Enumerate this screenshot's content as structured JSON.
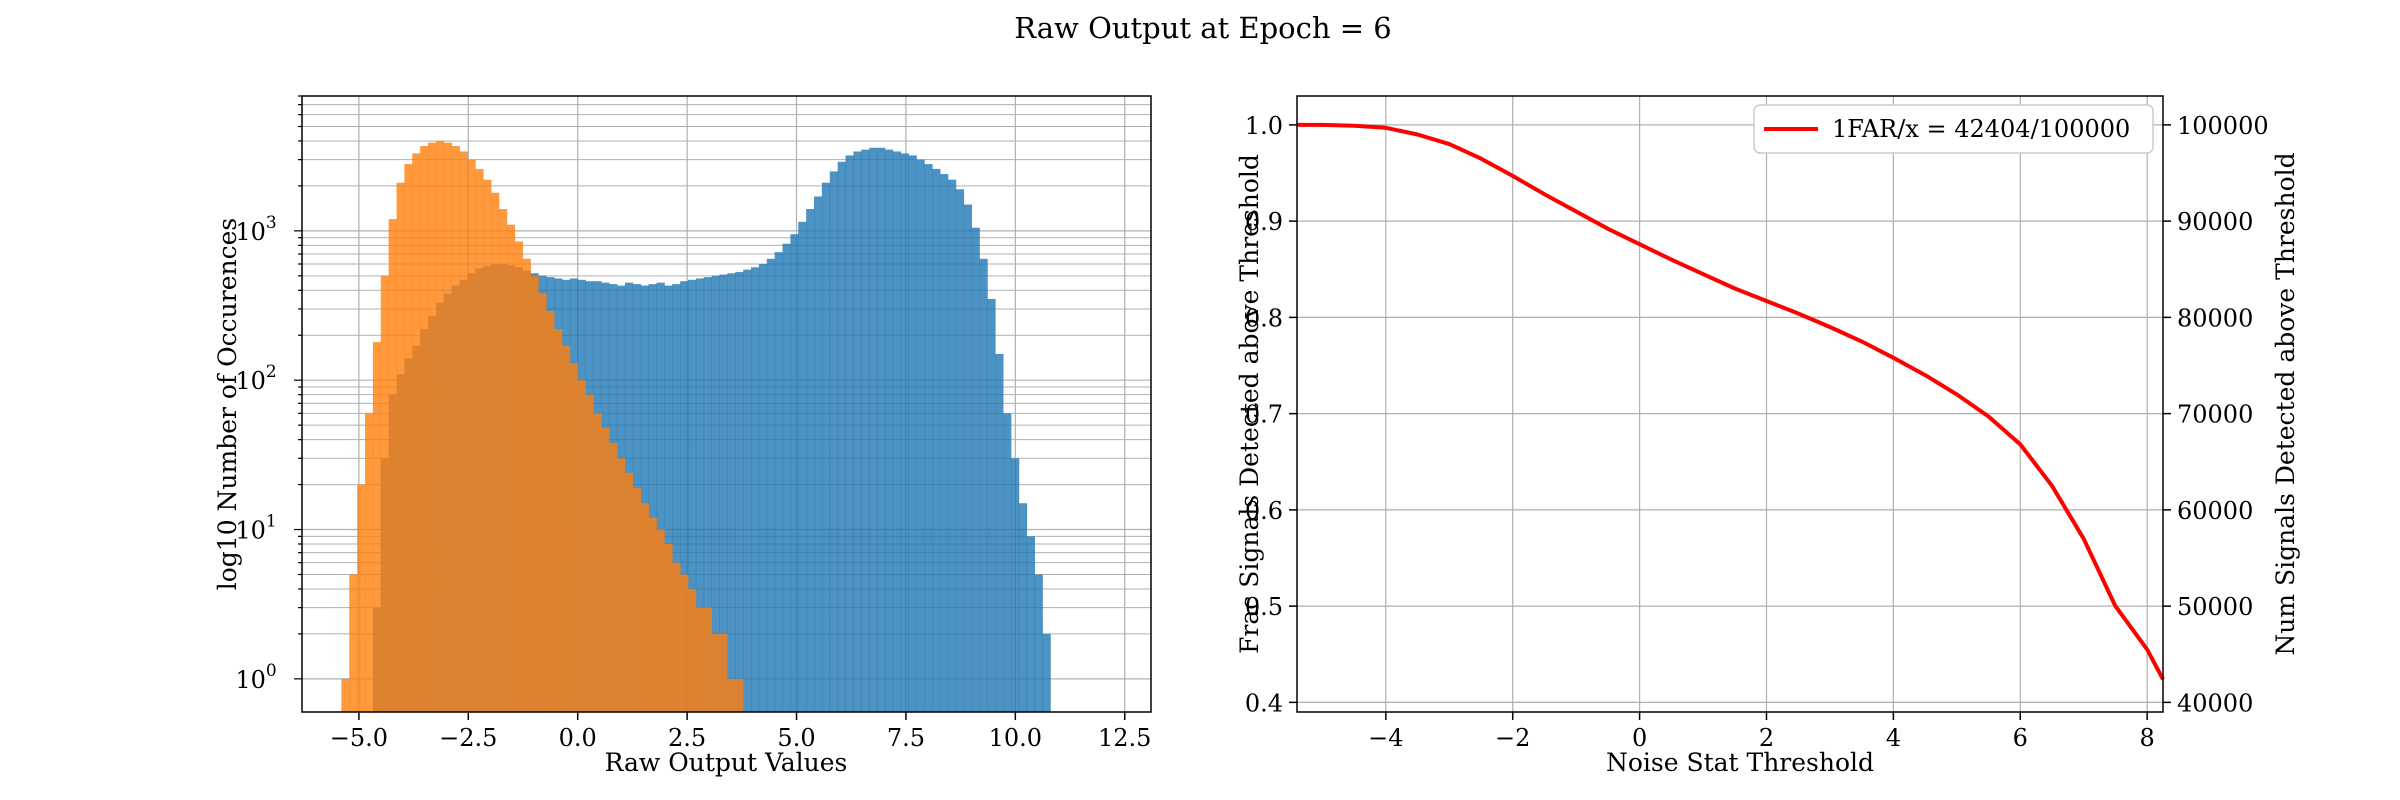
{
  "figure": {
    "title": "Raw Output at Epoch = 6"
  },
  "chart_data": [
    {
      "type": "histogram",
      "xlabel": "Raw Output Values",
      "ylabel": "log10 Number of Occurences",
      "xlim": [
        -6.3,
        13.1
      ],
      "ylim": [
        0.6,
        8000
      ],
      "yscale": "log",
      "grid": true,
      "xticks": [
        "−5.0",
        "−2.5",
        "0.0",
        "2.5",
        "5.0",
        "7.5",
        "10.0",
        "12.5"
      ],
      "xtick_values": [
        -5,
        -2.5,
        0,
        2.5,
        5,
        7.5,
        10,
        12.5
      ],
      "yticks": [
        "10",
        "10",
        "10",
        "10"
      ],
      "ytick_exponents": [
        "0",
        "1",
        "2",
        "3"
      ],
      "ytick_values": [
        1,
        10,
        100,
        1000
      ],
      "bin_start": -5.4,
      "bin_width": 0.18,
      "series": [
        {
          "color": "#1f77b4",
          "values": [
            0,
            0,
            0,
            0,
            3,
            30,
            80,
            110,
            140,
            170,
            220,
            270,
            330,
            380,
            430,
            470,
            520,
            560,
            580,
            600,
            600,
            590,
            570,
            540,
            520,
            500,
            490,
            480,
            470,
            480,
            470,
            460,
            460,
            450,
            440,
            430,
            450,
            440,
            430,
            440,
            450,
            430,
            440,
            460,
            470,
            480,
            490,
            500,
            510,
            520,
            530,
            550,
            570,
            600,
            650,
            720,
            820,
            950,
            1150,
            1400,
            1700,
            2100,
            2500,
            2900,
            3200,
            3400,
            3500,
            3600,
            3600,
            3500,
            3400,
            3300,
            3200,
            3000,
            2800,
            2600,
            2400,
            2200,
            1900,
            1500,
            1050,
            650,
            350,
            150,
            60,
            30,
            15,
            9,
            5,
            2
          ]
        },
        {
          "color": "#ff7f0e",
          "values": [
            1,
            5,
            20,
            60,
            180,
            500,
            1200,
            2100,
            2800,
            3300,
            3700,
            3900,
            4000,
            3900,
            3700,
            3400,
            3000,
            2600,
            2200,
            1800,
            1400,
            1100,
            850,
            650,
            500,
            380,
            290,
            220,
            170,
            130,
            100,
            80,
            60,
            48,
            38,
            30,
            24,
            19,
            15,
            12,
            10,
            8,
            6,
            5,
            4,
            3,
            3,
            2,
            2,
            1,
            1
          ]
        }
      ]
    },
    {
      "type": "line",
      "xlabel": "Noise Stat Threshold",
      "ylabel": "Frac Signals Detected above Threshold",
      "ylabel_right": "Num Signals Detected above Threshold",
      "xlim": [
        -5.4,
        8.25
      ],
      "ylim": [
        0.39,
        1.03
      ],
      "ylim_right": [
        39000,
        103000
      ],
      "grid": true,
      "legend_position": "top-right",
      "xticks": [
        "−4",
        "−2",
        "0",
        "2",
        "4",
        "6",
        "8"
      ],
      "xtick_values": [
        -4,
        -2,
        0,
        2,
        4,
        6,
        8
      ],
      "yticks": [
        "0.4",
        "0.5",
        "0.6",
        "0.7",
        "0.8",
        "0.9",
        "1.0"
      ],
      "ytick_values": [
        0.4,
        0.5,
        0.6,
        0.7,
        0.8,
        0.9,
        1.0
      ],
      "yticks_right": [
        "40000",
        "50000",
        "60000",
        "70000",
        "80000",
        "90000",
        "100000"
      ],
      "ytick_values_right": [
        40000,
        50000,
        60000,
        70000,
        80000,
        90000,
        100000
      ],
      "series": [
        {
          "name": "1FAR/x = 42404/100000",
          "color": "#ff0000",
          "x": [
            -5.4,
            -5.0,
            -4.5,
            -4.0,
            -3.5,
            -3.0,
            -2.5,
            -2.0,
            -1.5,
            -1.0,
            -0.5,
            0.0,
            0.5,
            1.0,
            1.5,
            2.0,
            2.5,
            3.0,
            3.5,
            4.0,
            4.5,
            5.0,
            5.5,
            6.0,
            6.5,
            7.0,
            7.5,
            8.0,
            8.25
          ],
          "y": [
            1.0,
            1.0,
            0.999,
            0.997,
            0.99,
            0.98,
            0.965,
            0.947,
            0.928,
            0.91,
            0.892,
            0.876,
            0.86,
            0.845,
            0.83,
            0.817,
            0.804,
            0.79,
            0.775,
            0.758,
            0.74,
            0.72,
            0.697,
            0.668,
            0.625,
            0.57,
            0.5,
            0.455,
            0.424
          ]
        }
      ]
    }
  ]
}
